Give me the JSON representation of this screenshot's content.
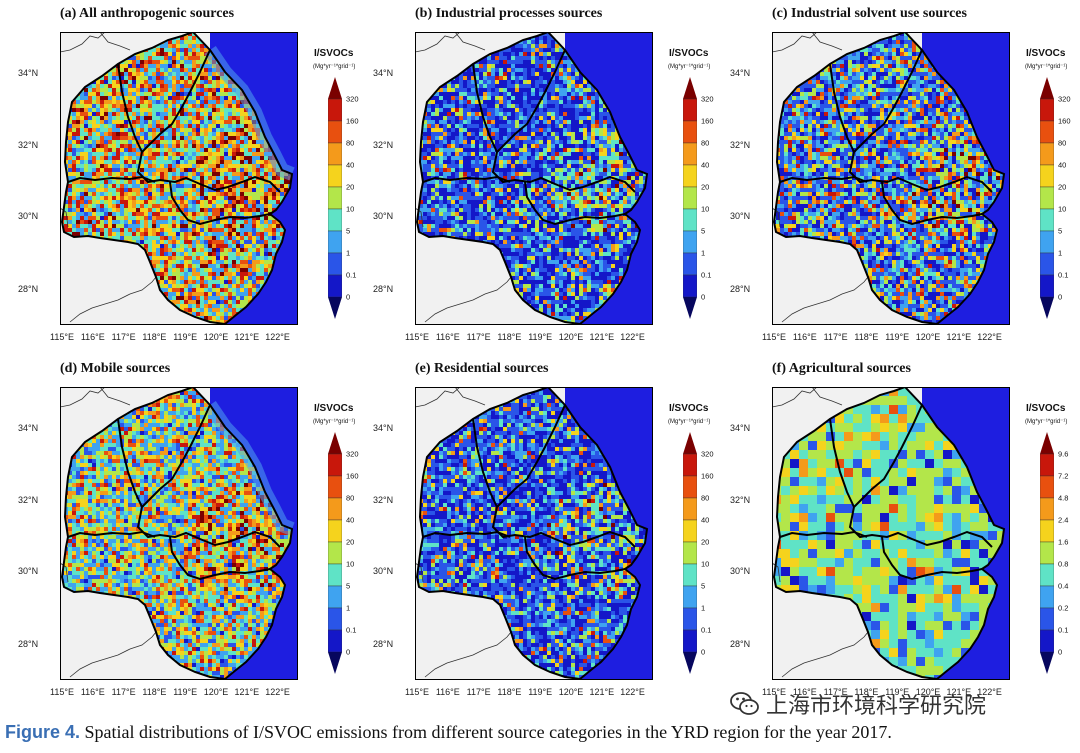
{
  "y_labels": [
    "34°N",
    "32°N",
    "30°N",
    "28°N"
  ],
  "x_labels": [
    "115°E",
    "116°E",
    "117°E",
    "118°E",
    "119°E",
    "120°E",
    "121°E",
    "122°E"
  ],
  "colorbar_title": "I/SVOCs",
  "colorbar_unit": "(Mg*yr⁻¹*grid⁻¹)",
  "levels_main": [
    "320",
    "160",
    "80",
    "40",
    "20",
    "10",
    "5",
    "1",
    "0.1",
    "0"
  ],
  "levels_agri": [
    "9.6",
    "7.2",
    "4.8",
    "2.4",
    "1.6",
    "0.8",
    "0.4",
    "0.2",
    "0.1",
    "0"
  ],
  "palette": [
    "#7a0000",
    "#c8170b",
    "#e8500f",
    "#f49a1b",
    "#f5d31d",
    "#b3e64a",
    "#5fe3c6",
    "#3fa3f0",
    "#2a55e8",
    "#1417c8",
    "#07075e"
  ],
  "ocean_color": "#1e1ee0",
  "land_outside_color": "#f1f1f1",
  "panels": [
    {
      "title": "(a) All anthropogenic sources",
      "scheme": "hot",
      "levels": "main"
    },
    {
      "title": "(b) Industrial processes sources",
      "scheme": "cold",
      "levels": "main"
    },
    {
      "title": "(c) Industrial solvent use sources",
      "scheme": "mid",
      "levels": "main"
    },
    {
      "title": "(d) Mobile sources",
      "scheme": "warm",
      "levels": "main"
    },
    {
      "title": "(e) Residential sources",
      "scheme": "cold2",
      "levels": "main"
    },
    {
      "title": "(f) Agricultural sources",
      "scheme": "agri",
      "levels": "agri"
    }
  ],
  "caption": {
    "figure_label": "Figure 4.",
    "text": " Spatial distributions of I/SVOC emissions from different source categories in the YRD region for the year 2017."
  },
  "watermark": "上海市环境科学研究院",
  "watermark_icon": "wechat-icon"
}
